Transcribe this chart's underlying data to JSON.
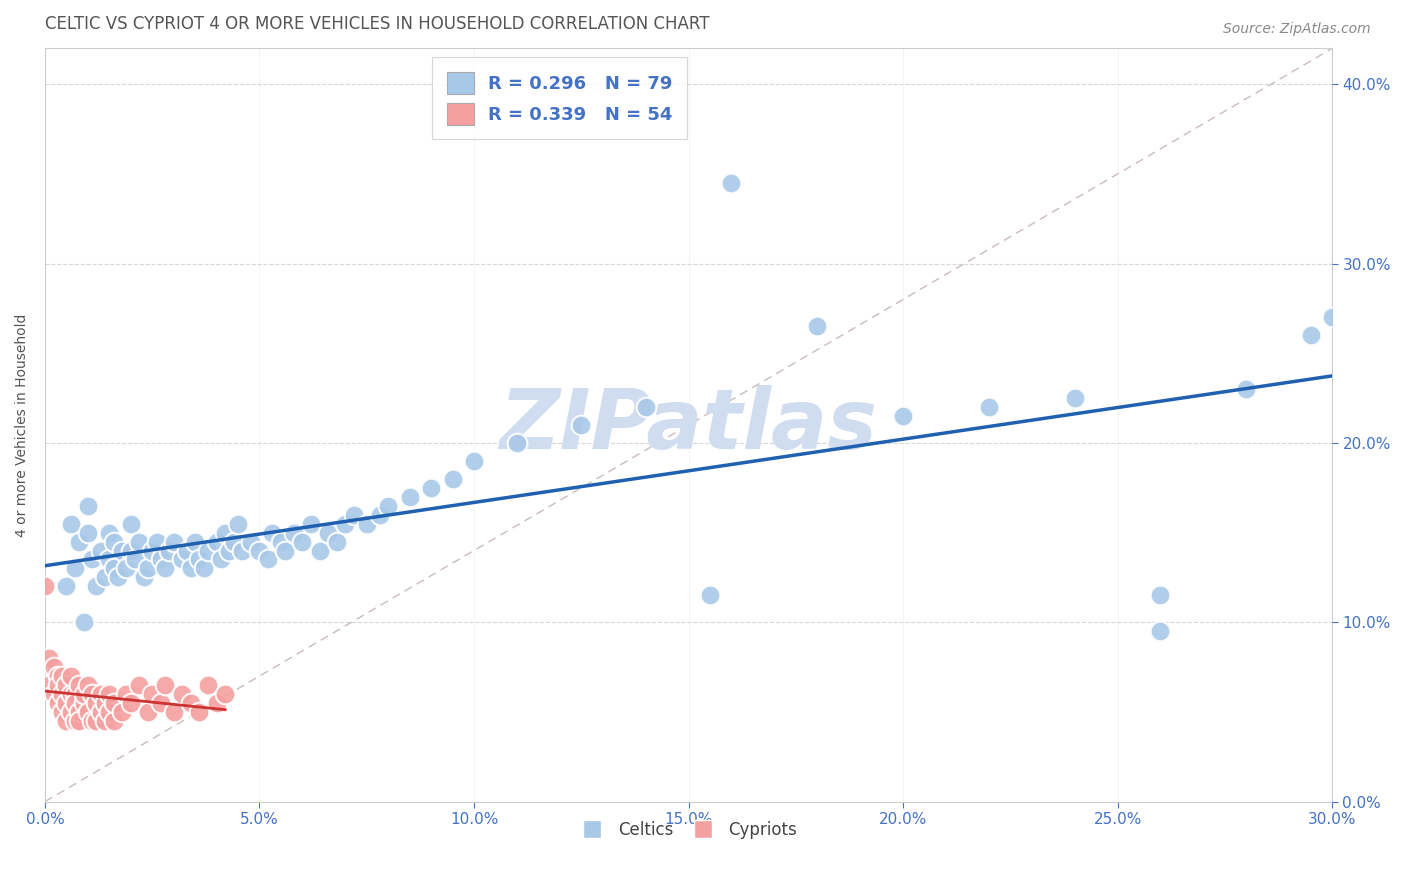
{
  "title": "CELTIC VS CYPRIOT 4 OR MORE VEHICLES IN HOUSEHOLD CORRELATION CHART",
  "source_text": "Source: ZipAtlas.com",
  "ylabel": "4 or more Vehicles in Household",
  "xlim": [
    0.0,
    0.3
  ],
  "ylim": [
    0.0,
    0.42
  ],
  "celtics_R": 0.296,
  "celtics_N": 79,
  "cypriot_R": 0.339,
  "cypriot_N": 54,
  "celtic_color": "#a8c8e8",
  "cypriot_color": "#f4a0a0",
  "trendline_celtic_color": "#2060b0",
  "trendline_cypriot_color": "#cc3333",
  "trendline_ref_color": "#ccbbbb",
  "watermark_color": "#d0ddf0",
  "legend_text_color": "#4472c4",
  "title_color": "#555555",
  "background_color": "#ffffff",
  "celtics_x": [
    0.005,
    0.006,
    0.007,
    0.008,
    0.009,
    0.01,
    0.01,
    0.011,
    0.012,
    0.013,
    0.014,
    0.015,
    0.015,
    0.016,
    0.016,
    0.017,
    0.018,
    0.019,
    0.02,
    0.02,
    0.021,
    0.022,
    0.023,
    0.024,
    0.025,
    0.026,
    0.027,
    0.028,
    0.029,
    0.03,
    0.032,
    0.033,
    0.034,
    0.035,
    0.036,
    0.037,
    0.038,
    0.04,
    0.041,
    0.042,
    0.043,
    0.044,
    0.045,
    0.046,
    0.048,
    0.05,
    0.052,
    0.053,
    0.055,
    0.056,
    0.058,
    0.06,
    0.062,
    0.064,
    0.066,
    0.068,
    0.07,
    0.072,
    0.075,
    0.078,
    0.08,
    0.085,
    0.09,
    0.095,
    0.1,
    0.11,
    0.125,
    0.14,
    0.16,
    0.18,
    0.2,
    0.22,
    0.24,
    0.26,
    0.28,
    0.3,
    0.295,
    0.155,
    0.26
  ],
  "celtics_y": [
    0.12,
    0.155,
    0.13,
    0.145,
    0.1,
    0.165,
    0.15,
    0.135,
    0.12,
    0.14,
    0.125,
    0.15,
    0.135,
    0.145,
    0.13,
    0.125,
    0.14,
    0.13,
    0.155,
    0.14,
    0.135,
    0.145,
    0.125,
    0.13,
    0.14,
    0.145,
    0.135,
    0.13,
    0.14,
    0.145,
    0.135,
    0.14,
    0.13,
    0.145,
    0.135,
    0.13,
    0.14,
    0.145,
    0.135,
    0.15,
    0.14,
    0.145,
    0.155,
    0.14,
    0.145,
    0.14,
    0.135,
    0.15,
    0.145,
    0.14,
    0.15,
    0.145,
    0.155,
    0.14,
    0.15,
    0.145,
    0.155,
    0.16,
    0.155,
    0.16,
    0.165,
    0.17,
    0.175,
    0.18,
    0.19,
    0.2,
    0.21,
    0.22,
    0.345,
    0.265,
    0.215,
    0.22,
    0.225,
    0.115,
    0.23,
    0.27,
    0.26,
    0.115,
    0.095
  ],
  "cypriot_x": [
    0.0,
    0.001,
    0.001,
    0.002,
    0.002,
    0.003,
    0.003,
    0.003,
    0.004,
    0.004,
    0.004,
    0.005,
    0.005,
    0.005,
    0.006,
    0.006,
    0.006,
    0.007,
    0.007,
    0.007,
    0.008,
    0.008,
    0.008,
    0.009,
    0.009,
    0.01,
    0.01,
    0.011,
    0.011,
    0.012,
    0.012,
    0.013,
    0.013,
    0.014,
    0.014,
    0.015,
    0.015,
    0.016,
    0.016,
    0.018,
    0.019,
    0.02,
    0.022,
    0.024,
    0.025,
    0.027,
    0.028,
    0.03,
    0.032,
    0.034,
    0.036,
    0.038,
    0.04,
    0.042
  ],
  "cypriot_y": [
    0.12,
    0.08,
    0.065,
    0.075,
    0.06,
    0.07,
    0.055,
    0.065,
    0.06,
    0.05,
    0.07,
    0.055,
    0.065,
    0.045,
    0.06,
    0.05,
    0.07,
    0.045,
    0.06,
    0.055,
    0.05,
    0.065,
    0.045,
    0.055,
    0.06,
    0.05,
    0.065,
    0.045,
    0.06,
    0.055,
    0.045,
    0.06,
    0.05,
    0.055,
    0.045,
    0.06,
    0.05,
    0.045,
    0.055,
    0.05,
    0.06,
    0.055,
    0.065,
    0.05,
    0.06,
    0.055,
    0.065,
    0.05,
    0.06,
    0.055,
    0.05,
    0.065,
    0.055,
    0.06
  ]
}
